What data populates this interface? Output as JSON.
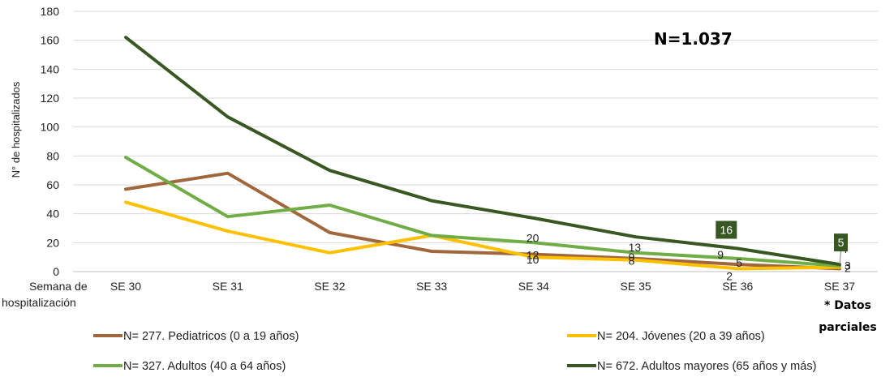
{
  "chart_data": {
    "type": "line",
    "categories": [
      "SE 30",
      "SE 31",
      "SE 32",
      "SE 33",
      "SE 34",
      "SE 35",
      "SE 36",
      "SE 37"
    ],
    "x_axis_title": "Semana de hospitalización",
    "ylabel": "N° de hospitalizados",
    "ylim": [
      0,
      180
    ],
    "yticks": [
      0,
      20,
      40,
      60,
      80,
      100,
      120,
      140,
      160,
      180
    ],
    "grid": true,
    "legend_position": "bottom",
    "annotation_total": "N=1.037",
    "annotation_note": "* Datos parciales",
    "series": [
      {
        "name": "N= 277. Pediatricos (0 a 19 años)",
        "color": "#a0673c",
        "values": [
          57,
          68,
          27,
          14,
          12,
          9,
          5,
          2
        ]
      },
      {
        "name": "N= 204. Jóvenes (20 a 39 años)",
        "color": "#ffc000",
        "values": [
          48,
          28,
          13,
          25,
          10,
          8,
          2,
          3
        ]
      },
      {
        "name": "N= 327. Adultos (40 a 64 años)",
        "color": "#70ad47",
        "values": [
          79,
          38,
          46,
          25,
          20,
          13,
          9,
          4
        ]
      },
      {
        "name": "N= 672. Adultos mayores (65 años y más)",
        "color": "#385723",
        "values": [
          162,
          107,
          70,
          49,
          37,
          24,
          16,
          5
        ]
      }
    ],
    "data_labels": [
      {
        "series": 0,
        "index": 4,
        "text": "12"
      },
      {
        "series": 1,
        "index": 4,
        "text": "10"
      },
      {
        "series": 2,
        "index": 4,
        "text": "20"
      },
      {
        "series": 0,
        "index": 5,
        "text": "9"
      },
      {
        "series": 1,
        "index": 5,
        "text": "8"
      },
      {
        "series": 2,
        "index": 5,
        "text": "13"
      },
      {
        "series": 0,
        "index": 6,
        "text": "5"
      },
      {
        "series": 1,
        "index": 6,
        "text": "2"
      },
      {
        "series": 2,
        "index": 6,
        "text": "9"
      },
      {
        "series": 3,
        "index": 6,
        "text": "16",
        "boxed": true
      },
      {
        "series": 0,
        "index": 7,
        "text": "2"
      },
      {
        "series": 1,
        "index": 7,
        "text": "3"
      },
      {
        "series": 2,
        "index": 7,
        "text": "4"
      },
      {
        "series": 3,
        "index": 7,
        "text": "5",
        "boxed": true
      }
    ]
  }
}
